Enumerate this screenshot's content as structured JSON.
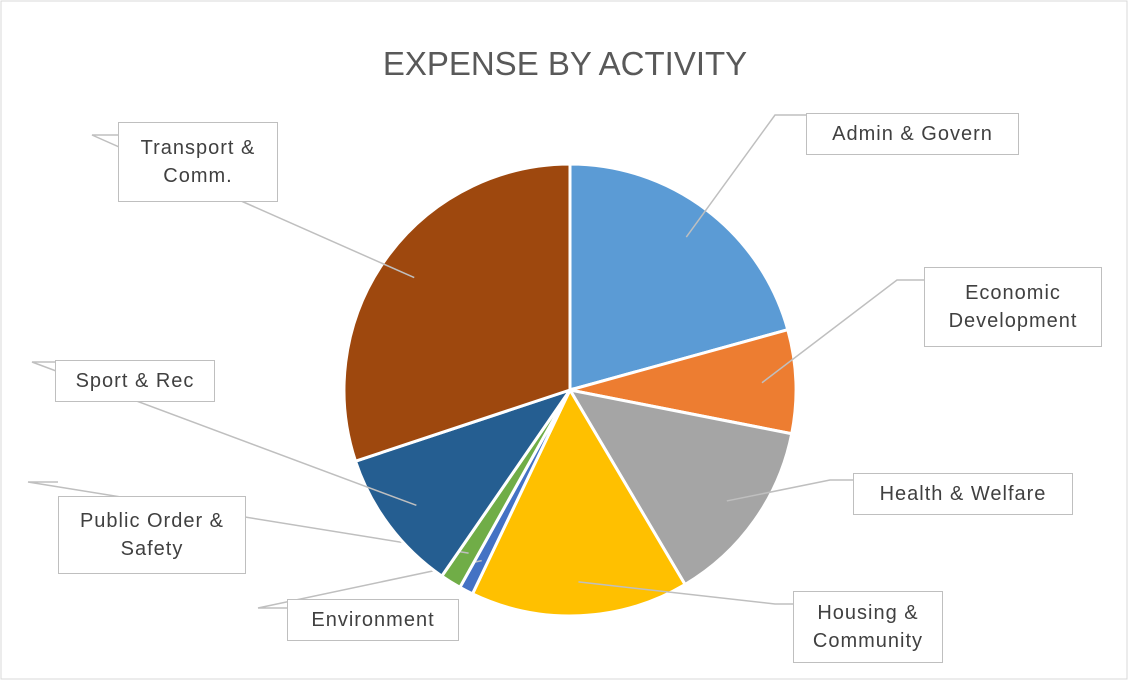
{
  "chart_data": {
    "type": "pie",
    "title": "EXPENSE BY ACTIVITY",
    "categories": [
      "Admin & Govern",
      "Economic Development",
      "Health & Welfare",
      "Housing & Community",
      "Environment",
      "Public Order & Safety",
      "Sport & Rec",
      "Transport & Comm."
    ],
    "values": [
      20.7,
      7.4,
      13.4,
      15.6,
      1.0,
      1.5,
      10.3,
      30.1
    ],
    "colors": [
      "#5b9bd5",
      "#ed7d31",
      "#a5a5a5",
      "#ffc000",
      "#4472c4",
      "#70ad47",
      "#255e91",
      "#9e480e"
    ]
  }
}
